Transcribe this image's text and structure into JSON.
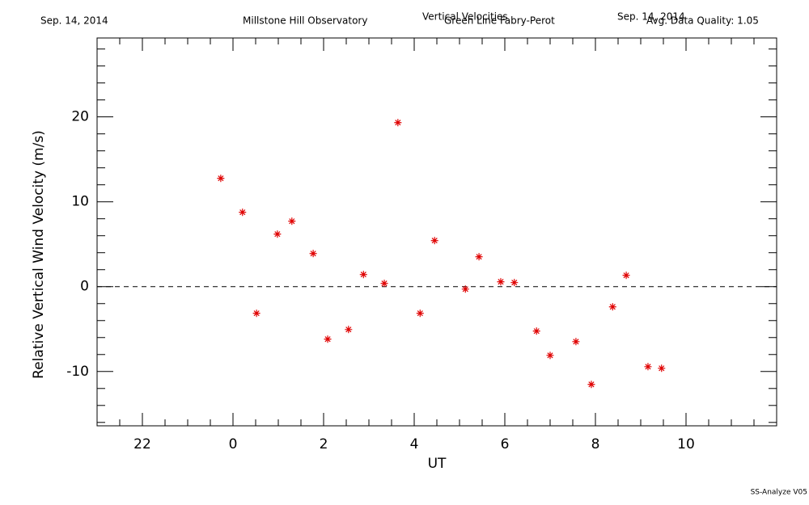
{
  "chart_data": {
    "type": "scatter",
    "header": {
      "left_date": "Sep. 14, 2014",
      "observatory": "Millstone Hill Observatory",
      "title": "Vertical Velocities",
      "instrument": "Green Line Fabry-Perot",
      "right_date": "Sep. 14, 2014",
      "quality": "Avg. Data Quality: 1.05"
    },
    "footer": "SS-Analyze V05",
    "xlabel": "UT",
    "ylabel": "Relative Vertical Wind Velocity (m/s)",
    "xlim": [
      -3,
      12
    ],
    "ylim": [
      -16.4,
      29.3
    ],
    "xticks": [
      {
        "value": -2,
        "label": "22"
      },
      0,
      2,
      4,
      6,
      8,
      10
    ],
    "yticks": [
      -10,
      0,
      10,
      20
    ],
    "xminorticks": [
      -2.5,
      -1.5,
      -1,
      -0.5,
      0.5,
      1,
      1.5,
      2.5,
      3,
      3.5,
      4.5,
      5,
      5.5,
      6.5,
      7,
      7.5,
      8.5,
      9,
      9.5,
      10.5,
      11,
      11.5
    ],
    "yminorticks": [
      -16,
      -14,
      -12,
      -8,
      -6,
      -4,
      -2,
      2,
      4,
      6,
      8,
      12,
      14,
      16,
      18,
      22,
      24,
      26,
      28
    ],
    "hline": 0,
    "color": "#e00000",
    "x": [
      -0.27,
      0.21,
      0.52,
      0.98,
      1.3,
      1.77,
      2.09,
      2.55,
      2.88,
      3.34,
      3.64,
      4.13,
      4.45,
      5.13,
      5.43,
      5.91,
      6.21,
      6.7,
      7.0,
      7.57,
      7.91,
      8.38,
      8.68,
      9.16,
      9.46
    ],
    "values": [
      12.76,
      8.76,
      -3.14,
      6.19,
      7.71,
      3.9,
      -6.19,
      -5.05,
      1.43,
      0.38,
      19.33,
      -3.14,
      5.43,
      -0.29,
      3.52,
      0.57,
      0.48,
      -5.24,
      -8.1,
      -6.48,
      -11.52,
      -2.38,
      1.33,
      -9.43,
      -9.62
    ]
  }
}
